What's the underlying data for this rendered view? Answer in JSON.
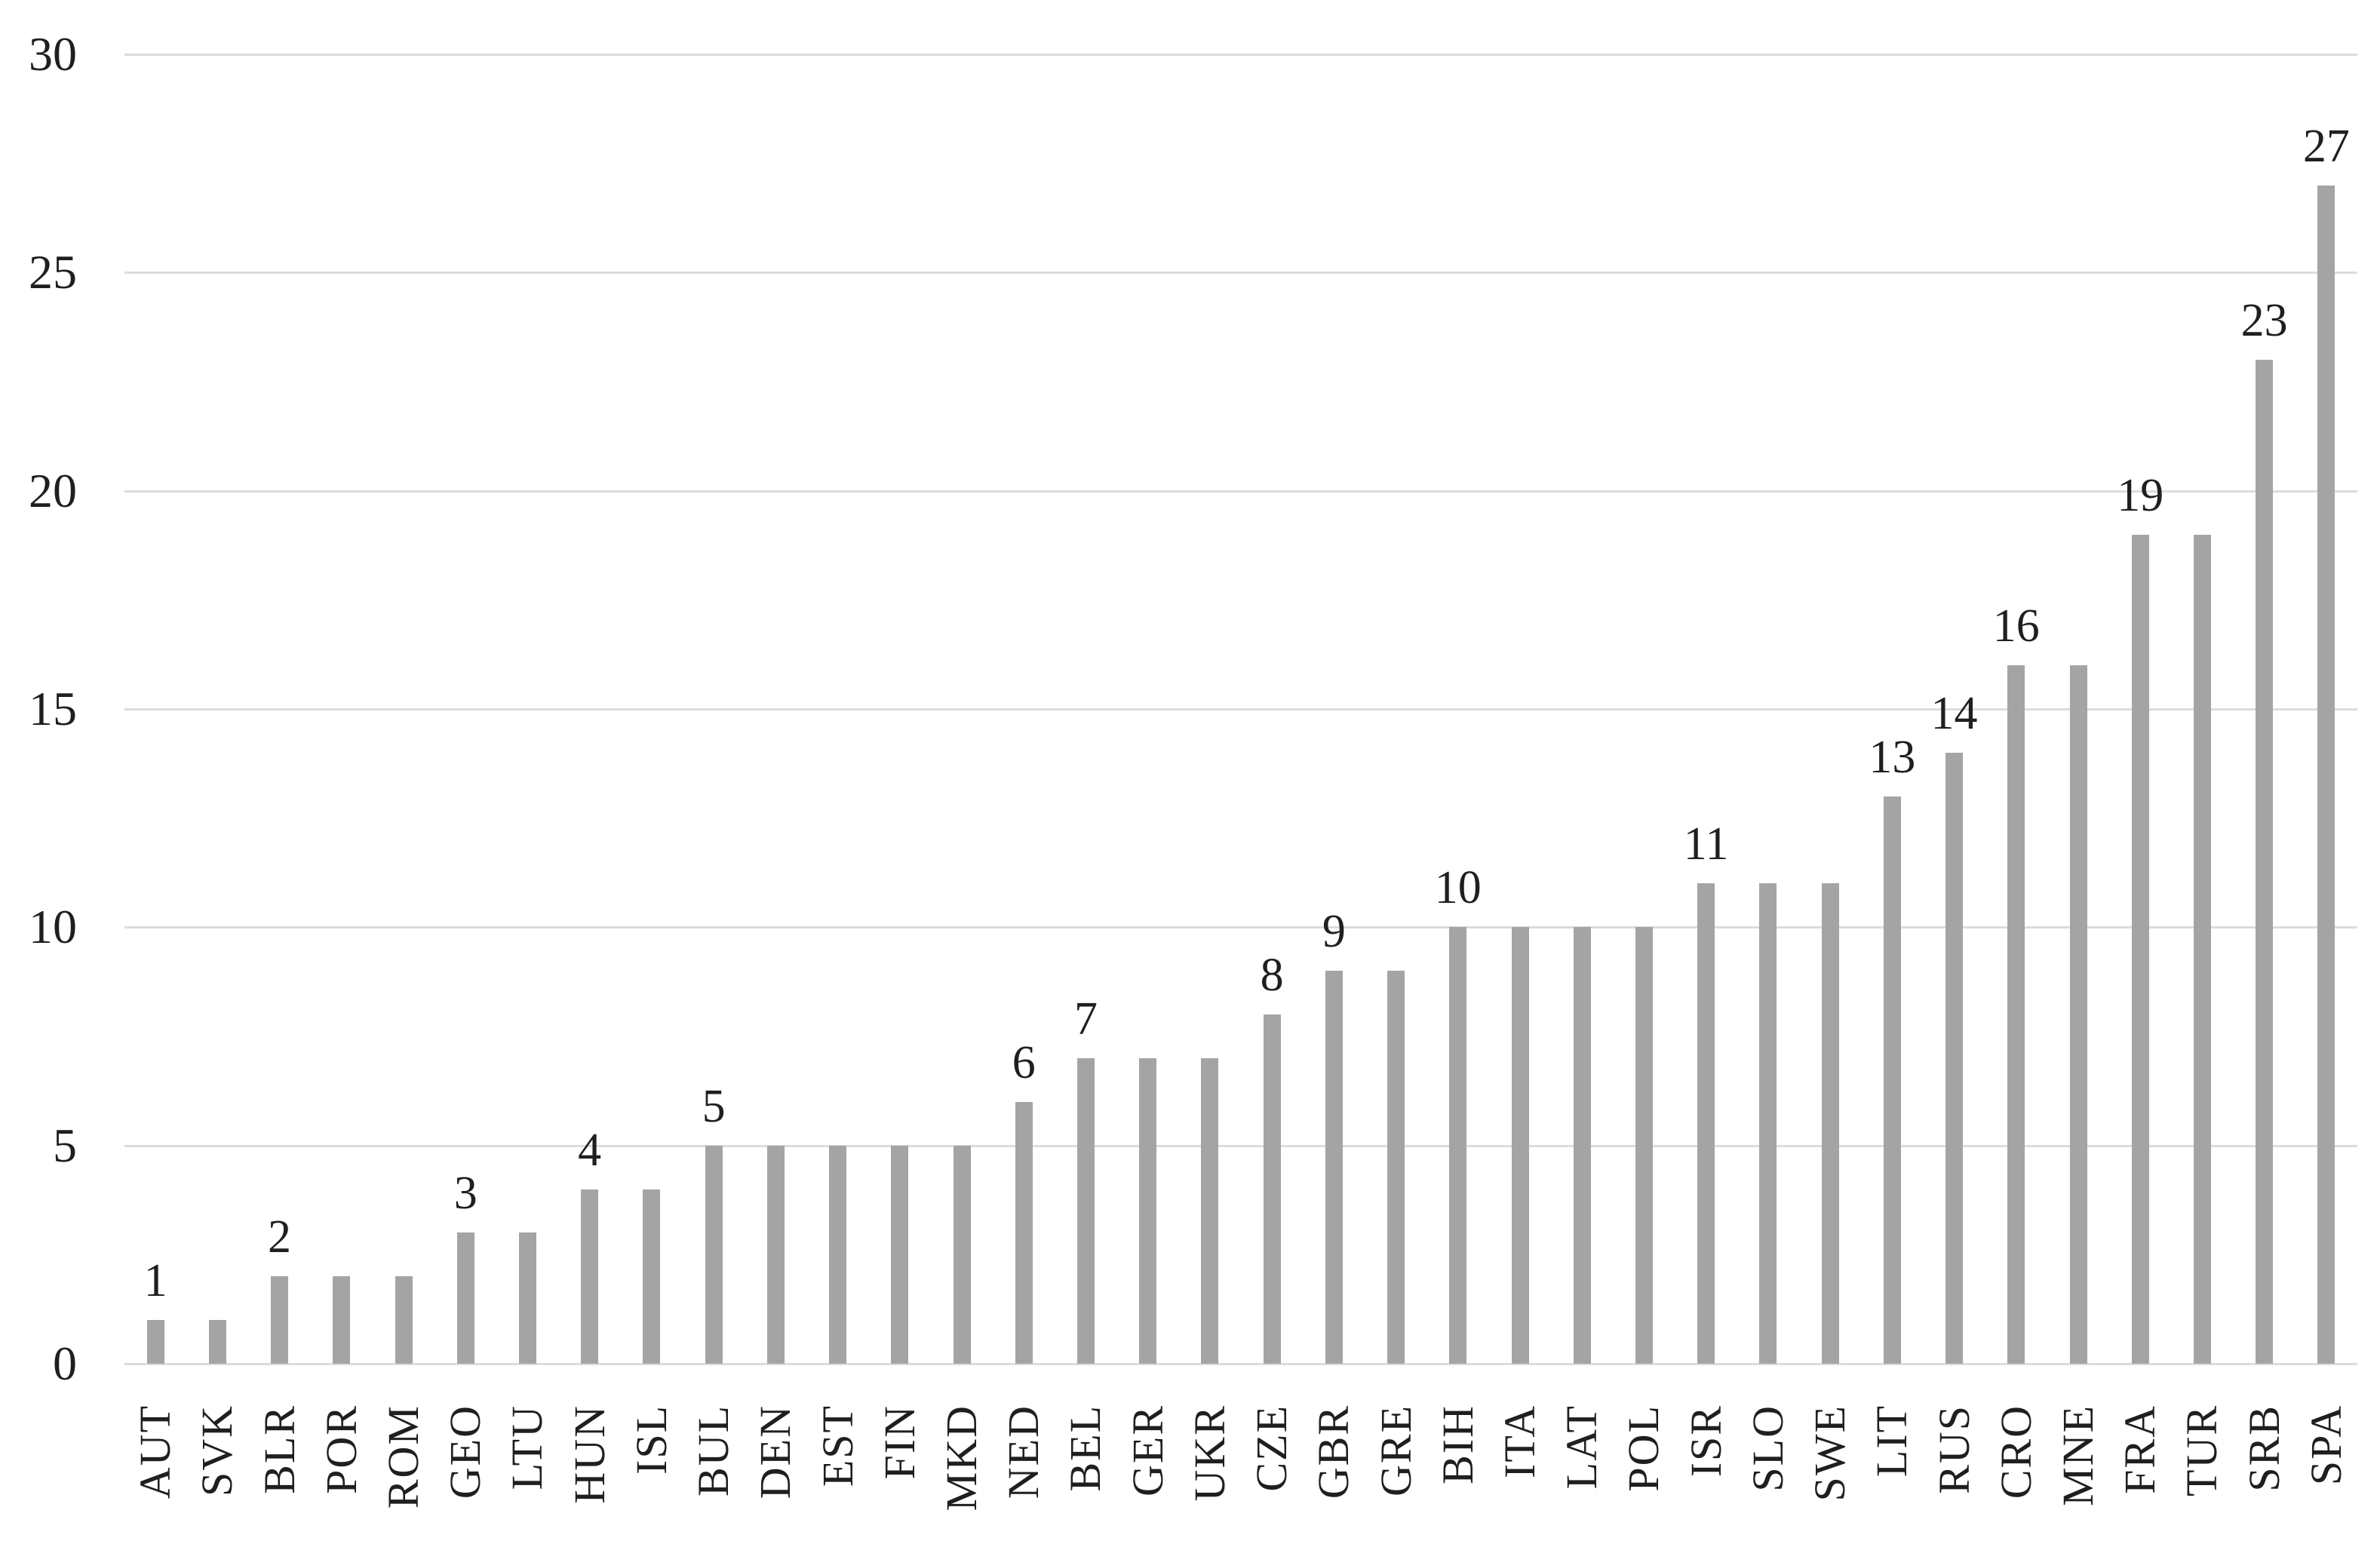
{
  "chart_data": {
    "type": "bar",
    "title": "",
    "xlabel": "",
    "ylabel": "",
    "categories": [
      "AUT",
      "SVK",
      "BLR",
      "POR",
      "ROM",
      "GEO",
      "LTU",
      "HUN",
      "ISL",
      "BUL",
      "DEN",
      "EST",
      "FIN",
      "MKD",
      "NED",
      "BEL",
      "GER",
      "UKR",
      "CZE",
      "GBR",
      "GRE",
      "BIH",
      "ITA",
      "LAT",
      "POL",
      "ISR",
      "SLO",
      "SWE",
      "LIT",
      "RUS",
      "CRO",
      "MNE",
      "FRA",
      "TUR",
      "SRB",
      "SPA"
    ],
    "values": [
      1,
      1,
      2,
      2,
      2,
      3,
      3,
      4,
      4,
      5,
      5,
      5,
      5,
      5,
      6,
      7,
      7,
      7,
      8,
      9,
      9,
      10,
      10,
      10,
      10,
      11,
      11,
      11,
      13,
      14,
      16,
      16,
      19,
      19,
      23,
      27
    ],
    "data_labels": [
      "1",
      "",
      "2",
      "",
      "",
      "3",
      "",
      "4",
      "",
      "5",
      "",
      "",
      "",
      "",
      "6",
      "7",
      "",
      "",
      "8",
      "9",
      "",
      "10",
      "",
      "",
      "",
      "11",
      "",
      "",
      "13",
      "14",
      "16",
      "",
      "19",
      "",
      "23",
      "27"
    ],
    "ylim": [
      0,
      30
    ],
    "y_ticks": [
      0,
      5,
      10,
      15,
      20,
      25,
      30
    ],
    "grid": "horizontal",
    "legend": "none",
    "bar_color": "#a4a4a4",
    "gridline_color": "#dcdcdc",
    "text_color": "#1f1f1f"
  }
}
